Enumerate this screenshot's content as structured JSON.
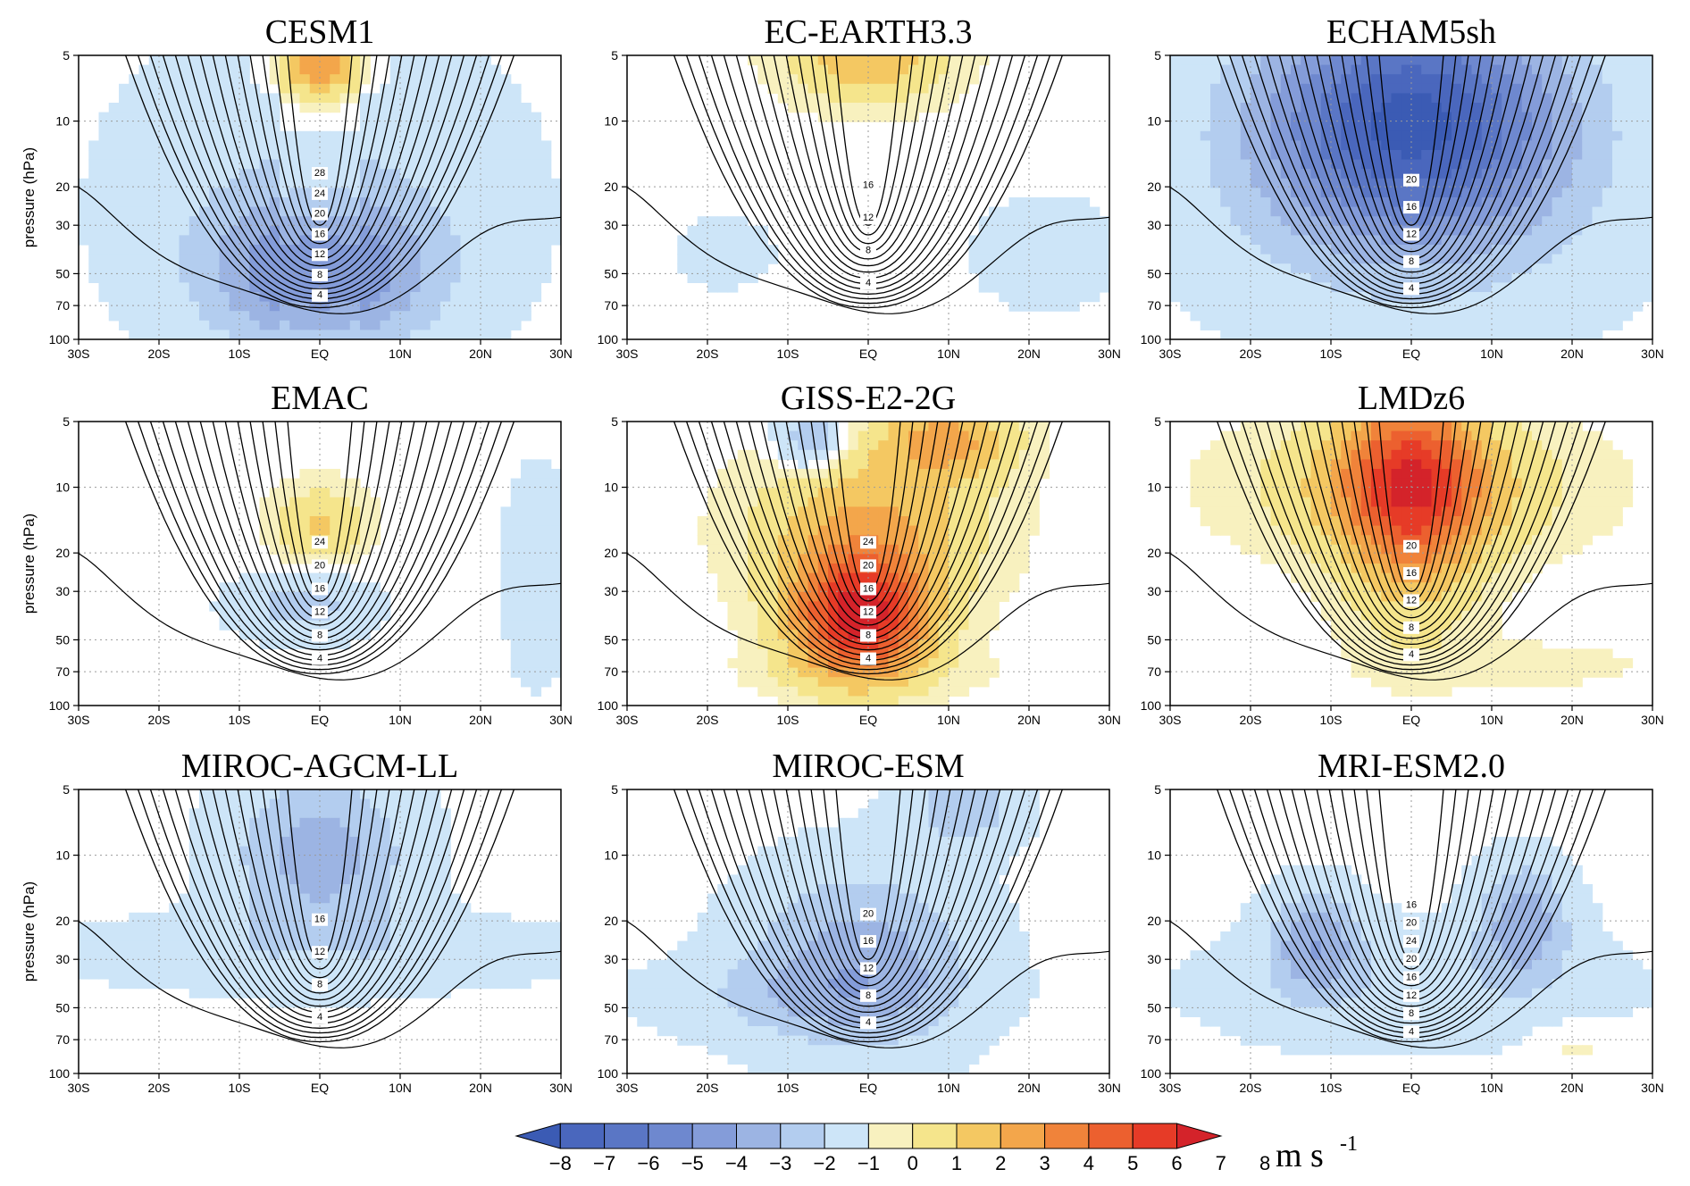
{
  "colors": {
    "neg": [
      "#3b5bb4",
      "#4a67bd",
      "#5a76c5",
      "#6e88cf",
      "#849cd9",
      "#9cb4e3",
      "#b3cdef",
      "#cde5f8"
    ],
    "pos": [
      "#f8f1bf",
      "#f5e58c",
      "#f4c862",
      "#f3a64b",
      "#f0833a",
      "#ec602f",
      "#e63b27",
      "#d4232a"
    ],
    "contour": "#000000",
    "pos_contour": "#e8423a",
    "neg_contour": "#2d4ea3"
  },
  "chart_data": {
    "type": "heatmap",
    "x_ticks": [
      "30S",
      "20S",
      "10S",
      "EQ",
      "10N",
      "20N",
      "30N"
    ],
    "y_ticks": [
      "5",
      "10",
      "20",
      "30",
      "50",
      "70",
      "100"
    ],
    "ylabel": "pressure (hPa)",
    "xlim": [
      -30,
      30
    ],
    "ylim": [
      100,
      5
    ],
    "y_scale": "log",
    "grid": true,
    "colorbar": {
      "labels": [
        "−8",
        "−7",
        "−6",
        "−5",
        "−4",
        "−3",
        "−2",
        "−1",
        "0",
        "1",
        "2",
        "3",
        "4",
        "5",
        "6",
        "7",
        "8"
      ],
      "unit_main": "m s",
      "unit_sup": "-1"
    },
    "panels": [
      {
        "title": "CESM1",
        "contour_labels": [
          "28",
          "24",
          "20",
          "16",
          "12",
          "8",
          "4"
        ],
        "anomaly": "negative-core-mid",
        "peak": -4,
        "core_p": 50,
        "top_anom": 4
      },
      {
        "title": "EC-EARTH3.3",
        "contour_labels": [
          "16",
          "12",
          "8",
          "4"
        ],
        "anomaly": "positive-top",
        "peak": 3,
        "core_p": 7,
        "top_anom": 3
      },
      {
        "title": "ECHAM5sh",
        "contour_labels": [
          "20",
          "16",
          "12",
          "8",
          "4"
        ],
        "anomaly": "negative-strong",
        "peak": -7,
        "core_p": 10,
        "top_anom": -6
      },
      {
        "title": "EMAC",
        "contour_labels": [
          "24",
          "20",
          "16",
          "12",
          "8",
          "4"
        ],
        "anomaly": "mixed",
        "peak": -2,
        "core_p": 35,
        "top_anom": 2
      },
      {
        "title": "GISS-E2-2G",
        "contour_labels": [
          "24",
          "20",
          "16",
          "12",
          "8",
          "4"
        ],
        "anomaly": "positive-strong",
        "peak": 7,
        "core_p": 40,
        "top_anom": 4
      },
      {
        "title": "LMDz6",
        "contour_labels": [
          "20",
          "16",
          "12",
          "8",
          "4"
        ],
        "anomaly": "positive-strong-top",
        "peak": 5,
        "core_p": 10,
        "top_anom": 4
      },
      {
        "title": "MIROC-AGCM-LL",
        "contour_labels": [
          "16",
          "12",
          "8",
          "4"
        ],
        "anomaly": "negative-top",
        "peak": -3,
        "core_p": 10,
        "top_anom": -3
      },
      {
        "title": "MIROC-ESM",
        "contour_labels": [
          "20",
          "16",
          "12",
          "8",
          "4"
        ],
        "anomaly": "negative-mid",
        "peak": -3,
        "core_p": 30,
        "top_anom": -3
      },
      {
        "title": "MRI-ESM2.0",
        "contour_labels": [
          "16",
          "20",
          "24",
          "20",
          "16",
          "12",
          "8",
          "4"
        ],
        "anomaly": "negative-side",
        "peak": -3,
        "core_p": 25,
        "top_anom": -1
      }
    ]
  }
}
